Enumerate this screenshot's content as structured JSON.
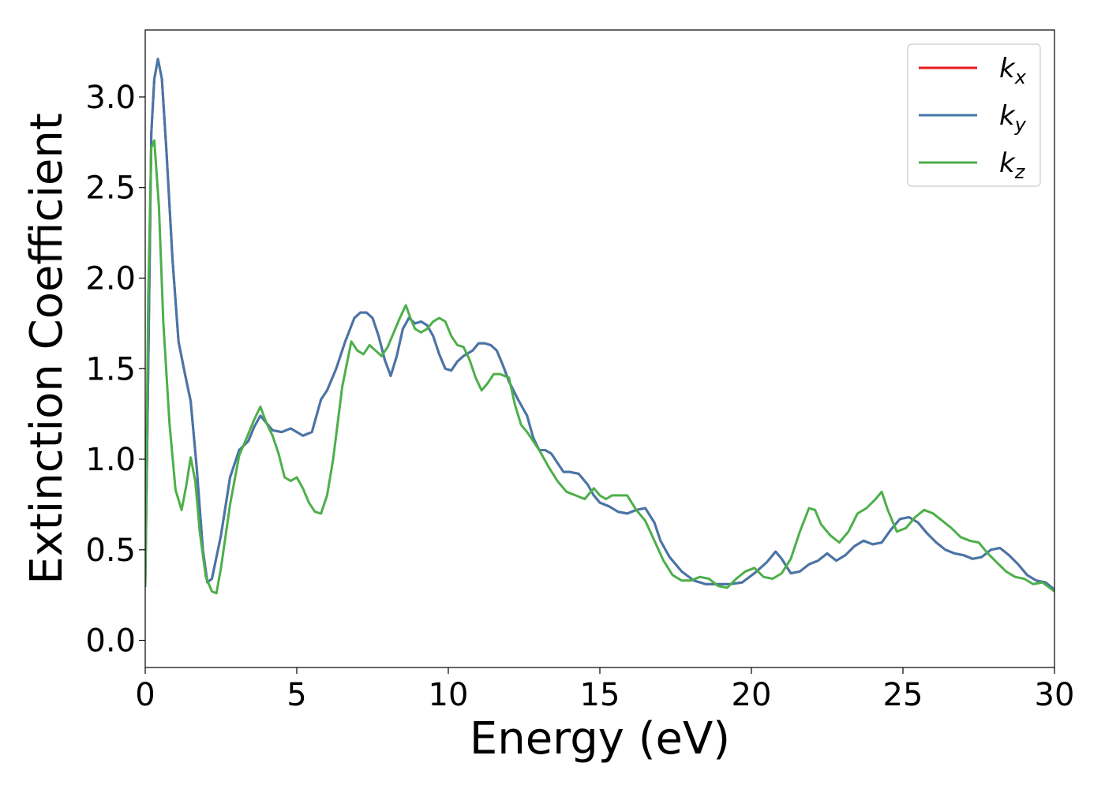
{
  "chart_data": {
    "type": "line",
    "title": "",
    "xlabel": "Energy (eV)",
    "ylabel": "Extinction Coefficient",
    "xlim": [
      0,
      30
    ],
    "ylim": [
      -0.15,
      3.37
    ],
    "xticks": [
      0,
      5,
      10,
      15,
      20,
      25,
      30
    ],
    "xtick_labels": [
      "0",
      "5",
      "10",
      "15",
      "20",
      "25",
      "30"
    ],
    "yticks": [
      0.0,
      0.5,
      1.0,
      1.5,
      2.0,
      2.5,
      3.0
    ],
    "ytick_labels": [
      "0.0",
      "0.5",
      "1.0",
      "1.5",
      "2.0",
      "2.5",
      "3.0"
    ],
    "grid": false,
    "legend_position": "top-right",
    "series": [
      {
        "name": "kx",
        "legend_base": "k",
        "legend_sub": "x",
        "color": "#e41a1c",
        "x": [
          0.0,
          0.1,
          0.2,
          0.3,
          0.42,
          0.55,
          0.7,
          0.9,
          1.1,
          1.3,
          1.5,
          1.7,
          1.9,
          2.05,
          2.2,
          2.5,
          2.8,
          3.1,
          3.4,
          3.6,
          3.8,
          4.0,
          4.2,
          4.5,
          4.8,
          5.0,
          5.2,
          5.5,
          5.8,
          6.0,
          6.3,
          6.6,
          6.9,
          7.1,
          7.3,
          7.5,
          7.7,
          7.9,
          8.1,
          8.3,
          8.5,
          8.7,
          8.9,
          9.1,
          9.3,
          9.5,
          9.7,
          9.9,
          10.1,
          10.3,
          10.5,
          10.8,
          11.0,
          11.2,
          11.4,
          11.6,
          11.8,
          12.0,
          12.3,
          12.6,
          12.8,
          13.0,
          13.2,
          13.4,
          13.6,
          13.8,
          14.0,
          14.3,
          14.6,
          14.8,
          15.0,
          15.3,
          15.6,
          15.9,
          16.2,
          16.5,
          16.8,
          17.0,
          17.3,
          17.7,
          18.1,
          18.5,
          18.9,
          19.3,
          19.7,
          20.1,
          20.5,
          20.8,
          21.0,
          21.3,
          21.6,
          21.9,
          22.2,
          22.5,
          22.8,
          23.1,
          23.4,
          23.7,
          24.0,
          24.3,
          24.6,
          24.9,
          25.2,
          25.5,
          25.8,
          26.1,
          26.4,
          26.7,
          27.0,
          27.3,
          27.6,
          27.9,
          28.2,
          28.5,
          28.8,
          29.1,
          29.4,
          29.7,
          30.0
        ],
        "y": [
          0.3,
          1.5,
          2.8,
          3.1,
          3.21,
          3.1,
          2.7,
          2.1,
          1.65,
          1.48,
          1.32,
          0.95,
          0.5,
          0.32,
          0.34,
          0.58,
          0.9,
          1.05,
          1.1,
          1.18,
          1.24,
          1.2,
          1.16,
          1.15,
          1.17,
          1.15,
          1.13,
          1.15,
          1.33,
          1.38,
          1.5,
          1.65,
          1.78,
          1.81,
          1.81,
          1.78,
          1.68,
          1.55,
          1.46,
          1.57,
          1.72,
          1.78,
          1.75,
          1.76,
          1.74,
          1.68,
          1.58,
          1.5,
          1.49,
          1.54,
          1.57,
          1.6,
          1.64,
          1.64,
          1.63,
          1.6,
          1.52,
          1.43,
          1.33,
          1.24,
          1.12,
          1.05,
          1.05,
          1.03,
          0.98,
          0.93,
          0.93,
          0.92,
          0.86,
          0.8,
          0.76,
          0.74,
          0.71,
          0.7,
          0.72,
          0.73,
          0.65,
          0.55,
          0.46,
          0.38,
          0.33,
          0.31,
          0.31,
          0.31,
          0.32,
          0.37,
          0.43,
          0.49,
          0.45,
          0.37,
          0.38,
          0.42,
          0.44,
          0.48,
          0.44,
          0.47,
          0.52,
          0.55,
          0.53,
          0.54,
          0.61,
          0.67,
          0.68,
          0.65,
          0.59,
          0.54,
          0.5,
          0.48,
          0.47,
          0.45,
          0.46,
          0.5,
          0.51,
          0.47,
          0.42,
          0.36,
          0.33,
          0.32,
          0.28
        ]
      },
      {
        "name": "ky",
        "legend_base": "k",
        "legend_sub": "y",
        "color": "#4477aa",
        "x": [
          0.0,
          0.1,
          0.2,
          0.3,
          0.42,
          0.55,
          0.7,
          0.9,
          1.1,
          1.3,
          1.5,
          1.7,
          1.9,
          2.05,
          2.2,
          2.5,
          2.8,
          3.1,
          3.4,
          3.6,
          3.8,
          4.0,
          4.2,
          4.5,
          4.8,
          5.0,
          5.2,
          5.5,
          5.8,
          6.0,
          6.3,
          6.6,
          6.9,
          7.1,
          7.3,
          7.5,
          7.7,
          7.9,
          8.1,
          8.3,
          8.5,
          8.7,
          8.9,
          9.1,
          9.3,
          9.5,
          9.7,
          9.9,
          10.1,
          10.3,
          10.5,
          10.8,
          11.0,
          11.2,
          11.4,
          11.6,
          11.8,
          12.0,
          12.3,
          12.6,
          12.8,
          13.0,
          13.2,
          13.4,
          13.6,
          13.8,
          14.0,
          14.3,
          14.6,
          14.8,
          15.0,
          15.3,
          15.6,
          15.9,
          16.2,
          16.5,
          16.8,
          17.0,
          17.3,
          17.7,
          18.1,
          18.5,
          18.9,
          19.3,
          19.7,
          20.1,
          20.5,
          20.8,
          21.0,
          21.3,
          21.6,
          21.9,
          22.2,
          22.5,
          22.8,
          23.1,
          23.4,
          23.7,
          24.0,
          24.3,
          24.6,
          24.9,
          25.2,
          25.5,
          25.8,
          26.1,
          26.4,
          26.7,
          27.0,
          27.3,
          27.6,
          27.9,
          28.2,
          28.5,
          28.8,
          29.1,
          29.4,
          29.7,
          30.0
        ],
        "y": [
          0.3,
          1.5,
          2.8,
          3.1,
          3.21,
          3.1,
          2.7,
          2.1,
          1.65,
          1.48,
          1.32,
          0.95,
          0.5,
          0.32,
          0.34,
          0.58,
          0.9,
          1.05,
          1.1,
          1.18,
          1.24,
          1.2,
          1.16,
          1.15,
          1.17,
          1.15,
          1.13,
          1.15,
          1.33,
          1.38,
          1.5,
          1.65,
          1.78,
          1.81,
          1.81,
          1.78,
          1.68,
          1.55,
          1.46,
          1.57,
          1.72,
          1.78,
          1.75,
          1.76,
          1.74,
          1.68,
          1.58,
          1.5,
          1.49,
          1.54,
          1.57,
          1.6,
          1.64,
          1.64,
          1.63,
          1.6,
          1.52,
          1.43,
          1.33,
          1.24,
          1.12,
          1.05,
          1.05,
          1.03,
          0.98,
          0.93,
          0.93,
          0.92,
          0.86,
          0.8,
          0.76,
          0.74,
          0.71,
          0.7,
          0.72,
          0.73,
          0.65,
          0.55,
          0.46,
          0.38,
          0.33,
          0.31,
          0.31,
          0.31,
          0.32,
          0.37,
          0.43,
          0.49,
          0.45,
          0.37,
          0.38,
          0.42,
          0.44,
          0.48,
          0.44,
          0.47,
          0.52,
          0.55,
          0.53,
          0.54,
          0.61,
          0.67,
          0.68,
          0.65,
          0.59,
          0.54,
          0.5,
          0.48,
          0.47,
          0.45,
          0.46,
          0.5,
          0.51,
          0.47,
          0.42,
          0.36,
          0.33,
          0.32,
          0.28
        ]
      },
      {
        "name": "kz",
        "legend_base": "k",
        "legend_sub": "z",
        "color": "#4daf4a",
        "x": [
          0.0,
          0.1,
          0.2,
          0.3,
          0.45,
          0.6,
          0.8,
          1.0,
          1.2,
          1.35,
          1.5,
          1.65,
          1.8,
          2.0,
          2.2,
          2.35,
          2.5,
          2.8,
          3.1,
          3.4,
          3.6,
          3.8,
          4.0,
          4.2,
          4.4,
          4.6,
          4.8,
          5.0,
          5.2,
          5.4,
          5.6,
          5.8,
          6.0,
          6.2,
          6.5,
          6.8,
          7.0,
          7.2,
          7.4,
          7.6,
          7.8,
          8.0,
          8.2,
          8.4,
          8.6,
          8.75,
          8.9,
          9.1,
          9.3,
          9.5,
          9.7,
          9.9,
          10.1,
          10.3,
          10.5,
          10.7,
          10.9,
          11.1,
          11.3,
          11.5,
          11.7,
          12.0,
          12.2,
          12.4,
          12.6,
          12.8,
          13.0,
          13.3,
          13.6,
          13.9,
          14.2,
          14.5,
          14.8,
          15.0,
          15.2,
          15.4,
          15.6,
          15.9,
          16.2,
          16.5,
          16.8,
          17.1,
          17.4,
          17.7,
          18.0,
          18.3,
          18.6,
          18.9,
          19.2,
          19.5,
          19.8,
          20.1,
          20.4,
          20.7,
          21.0,
          21.3,
          21.6,
          21.9,
          22.1,
          22.3,
          22.6,
          22.9,
          23.2,
          23.5,
          23.8,
          24.1,
          24.3,
          24.5,
          24.8,
          25.1,
          25.4,
          25.7,
          26.0,
          26.3,
          26.6,
          26.9,
          27.2,
          27.5,
          27.8,
          28.1,
          28.4,
          28.7,
          29.0,
          29.3,
          29.6,
          30.0
        ],
        "y": [
          0.3,
          1.9,
          2.72,
          2.76,
          2.4,
          1.75,
          1.2,
          0.83,
          0.72,
          0.85,
          1.01,
          0.88,
          0.6,
          0.35,
          0.27,
          0.26,
          0.4,
          0.75,
          1.02,
          1.14,
          1.22,
          1.29,
          1.2,
          1.13,
          1.03,
          0.9,
          0.88,
          0.9,
          0.84,
          0.76,
          0.71,
          0.7,
          0.8,
          1.0,
          1.4,
          1.65,
          1.6,
          1.58,
          1.63,
          1.6,
          1.57,
          1.62,
          1.7,
          1.78,
          1.85,
          1.78,
          1.72,
          1.7,
          1.72,
          1.76,
          1.78,
          1.76,
          1.68,
          1.63,
          1.62,
          1.55,
          1.45,
          1.38,
          1.42,
          1.47,
          1.47,
          1.45,
          1.3,
          1.19,
          1.15,
          1.1,
          1.05,
          0.96,
          0.88,
          0.82,
          0.8,
          0.78,
          0.84,
          0.8,
          0.78,
          0.8,
          0.8,
          0.8,
          0.72,
          0.66,
          0.55,
          0.44,
          0.36,
          0.33,
          0.33,
          0.35,
          0.34,
          0.3,
          0.29,
          0.34,
          0.38,
          0.4,
          0.35,
          0.34,
          0.37,
          0.45,
          0.6,
          0.73,
          0.72,
          0.64,
          0.58,
          0.54,
          0.6,
          0.7,
          0.73,
          0.78,
          0.82,
          0.72,
          0.6,
          0.62,
          0.68,
          0.72,
          0.7,
          0.66,
          0.62,
          0.57,
          0.55,
          0.54,
          0.48,
          0.43,
          0.38,
          0.35,
          0.34,
          0.31,
          0.32,
          0.27
        ]
      }
    ]
  }
}
